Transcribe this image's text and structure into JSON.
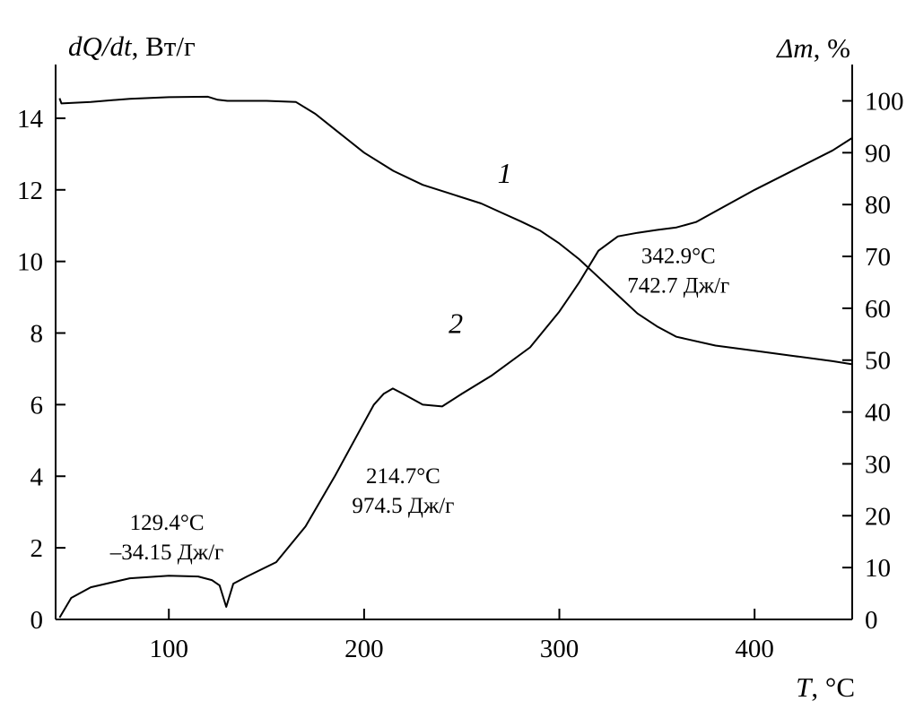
{
  "chart_data": {
    "type": "line",
    "title": "",
    "xlabel_var": "T",
    "xlabel_unit": ", °C",
    "ylabel_left_var": "dQ/dt",
    "ylabel_left_unit": ", Вт/г",
    "ylabel_right_var": "Δm",
    "ylabel_right_unit": ", %",
    "xlim": [
      42,
      450
    ],
    "ylim_left": [
      0,
      15.5
    ],
    "ylim_right": [
      0,
      107
    ],
    "x_ticks": [
      100,
      200,
      300,
      400
    ],
    "y_left_ticks": [
      0,
      2,
      4,
      6,
      8,
      10,
      12,
      14
    ],
    "y_right_ticks": [
      0,
      10,
      20,
      30,
      40,
      50,
      60,
      70,
      80,
      90,
      100
    ],
    "grid": false,
    "line_color": "#000000",
    "series": [
      {
        "name": "1",
        "axis": "right",
        "x": [
          44,
          45,
          60,
          80,
          100,
          120,
          125,
          130,
          150,
          165,
          175,
          185,
          200,
          215,
          230,
          245,
          260,
          270,
          280,
          290,
          300,
          310,
          320,
          330,
          340,
          350,
          360,
          380,
          400,
          420,
          440,
          450
        ],
        "y": [
          100.5,
          99.5,
          99.8,
          100.4,
          100.7,
          100.8,
          100.2,
          100.0,
          100.0,
          99.8,
          97.5,
          94.5,
          90.0,
          86.5,
          83.8,
          82.0,
          80.2,
          78.5,
          76.8,
          75.0,
          72.5,
          69.5,
          66.0,
          62.5,
          59.0,
          56.5,
          54.5,
          52.8,
          51.8,
          50.8,
          49.8,
          49.2
        ]
      },
      {
        "name": "2",
        "axis": "left",
        "x": [
          44,
          50,
          60,
          80,
          100,
          115,
          122,
          126,
          129.4,
          133,
          140,
          155,
          170,
          185,
          198,
          205,
          210,
          214.7,
          220,
          230,
          240,
          250,
          265,
          285,
          300,
          310,
          320,
          330,
          340,
          350,
          360,
          370,
          380,
          400,
          420,
          440,
          450
        ],
        "y": [
          0.05,
          0.6,
          0.9,
          1.15,
          1.22,
          1.2,
          1.1,
          0.95,
          0.35,
          1.0,
          1.2,
          1.6,
          2.6,
          4.0,
          5.3,
          6.0,
          6.3,
          6.45,
          6.3,
          6.0,
          5.95,
          6.3,
          6.8,
          7.6,
          8.6,
          9.4,
          10.3,
          10.7,
          10.8,
          10.88,
          10.95,
          11.1,
          11.4,
          12.0,
          12.55,
          13.1,
          13.45
        ]
      }
    ],
    "curve_labels": [
      {
        "text": "1",
        "x": 272,
        "y": 12.2
      },
      {
        "text": "2",
        "x": 247,
        "y": 8.0
      }
    ],
    "annotations": [
      {
        "lines": [
          "129.4°C",
          "–34.15 Дж/г"
        ],
        "x": 99,
        "y": 2.5
      },
      {
        "lines": [
          "214.7°C",
          "974.5 Дж/г"
        ],
        "x": 220,
        "y": 3.8
      },
      {
        "lines": [
          "342.9°C",
          "742.7 Дж/г"
        ],
        "x": 361,
        "y": 9.95
      }
    ]
  }
}
